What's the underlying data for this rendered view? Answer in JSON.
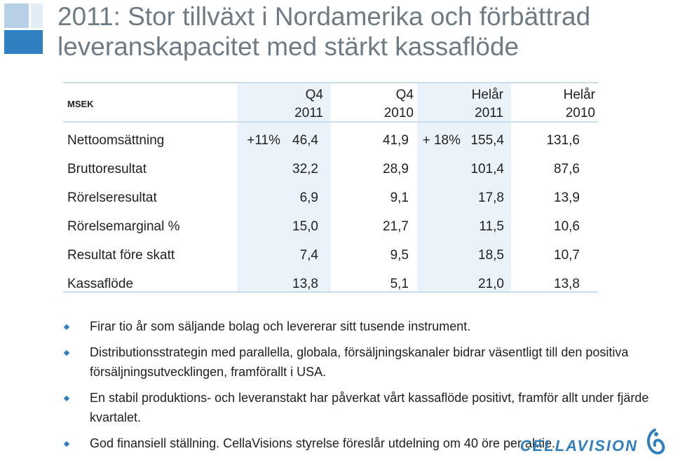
{
  "title": {
    "line1": "2011: Stor tillväxt i Nordamerika och förbättrad",
    "line2": "leveranskapacitet med stärkt kassaflöde"
  },
  "table": {
    "unit_label": "MSEK",
    "columns": [
      {
        "line1": "Q4",
        "line2": "2011"
      },
      {
        "line1": "Q4",
        "line2": "2010"
      },
      {
        "line1": "Helår",
        "line2": "2011"
      },
      {
        "line1": "Helår",
        "line2": "2010"
      }
    ],
    "rows": [
      {
        "label": "Nettoomsättning",
        "growth_q4": "+11%",
        "q4_2011": "46,4",
        "q4_2010": "41,9",
        "growth_fy": "+ 18%",
        "fy_2011": "155,4",
        "fy_2010": "131,6"
      },
      {
        "label": "Bruttoresultat",
        "growth_q4": "",
        "q4_2011": "32,2",
        "q4_2010": "28,9",
        "growth_fy": "",
        "fy_2011": "101,4",
        "fy_2010": "87,6"
      },
      {
        "label": "Rörelseresultat",
        "growth_q4": "",
        "q4_2011": "6,9",
        "q4_2010": "9,1",
        "growth_fy": "",
        "fy_2011": "17,8",
        "fy_2010": "13,9"
      },
      {
        "label": "Rörelsemarginal %",
        "growth_q4": "",
        "q4_2011": "15,0",
        "q4_2010": "21,7",
        "growth_fy": "",
        "fy_2011": "11,5",
        "fy_2010": "10,6"
      },
      {
        "label": "Resultat före skatt",
        "growth_q4": "",
        "q4_2011": "7,4",
        "q4_2010": "9,5",
        "growth_fy": "",
        "fy_2011": "18,5",
        "fy_2010": "10,7"
      },
      {
        "label": "Kassaflöde",
        "growth_q4": "",
        "q4_2011": "13,8",
        "q4_2010": "5,1",
        "growth_fy": "",
        "fy_2011": "21,0",
        "fy_2010": "13,8"
      }
    ]
  },
  "bullets": [
    "Firar tio år som säljande bolag och levererar sitt tusende instrument.",
    "Distributionsstrategin med parallella, globala, försäljningskanaler bidrar väsentligt till den positiva försäljningsutvecklingen, framförallt i USA.",
    "En stabil produktions- och leveranstakt har påverkat vårt kassaflöde positivt, framför allt under fjärde kvartalet.",
    "God finansiell ställning. CellaVisions styrelse föreslår utdelning om 40 öre per aktie."
  ],
  "logo": {
    "text": "CELLAVISION"
  },
  "colors": {
    "accent": "#2f7fc1",
    "highlight": "#eaf3f9",
    "title": "#6f7b84"
  }
}
